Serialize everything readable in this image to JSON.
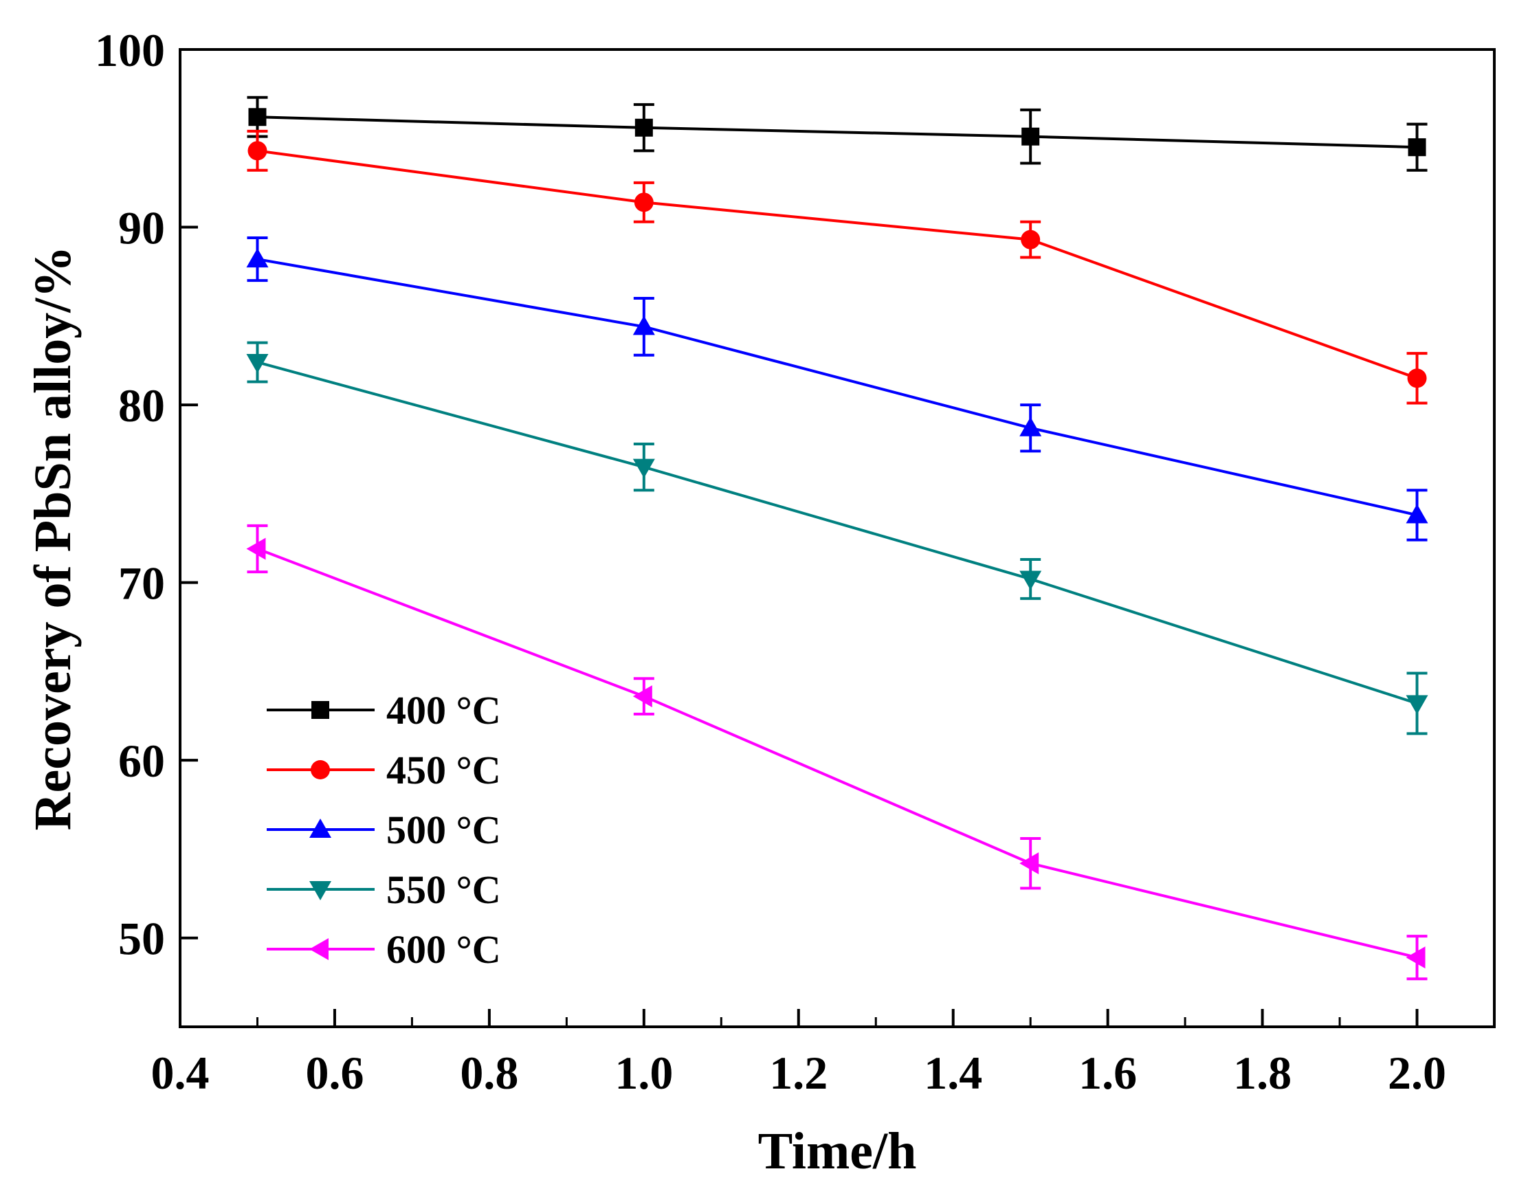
{
  "chart_data": {
    "type": "line",
    "title": "",
    "xlabel": "Time/h",
    "ylabel": "Recovery of PbSn alloy/%",
    "xlim": [
      0.4,
      2.1
    ],
    "ylim": [
      45,
      100
    ],
    "xticks": [
      0.4,
      0.6,
      0.8,
      1.0,
      1.2,
      1.4,
      1.6,
      1.8,
      2.0
    ],
    "xtick_labels": [
      "0.4",
      "0.6",
      "0.8",
      "1.0",
      "1.2",
      "1.4",
      "1.6",
      "1.8",
      "2.0"
    ],
    "yticks": [
      50,
      60,
      70,
      80,
      90,
      100
    ],
    "ytick_labels": [
      "50",
      "60",
      "70",
      "80",
      "90",
      "100"
    ],
    "grid": false,
    "legend_position": "bottom-left",
    "x": [
      0.5,
      1.0,
      1.5,
      2.0
    ],
    "series": [
      {
        "name": "400 °C",
        "color": "#000000",
        "marker": "square",
        "values": [
          96.2,
          95.6,
          95.1,
          94.5
        ],
        "errors": [
          1.1,
          1.3,
          1.5,
          1.3
        ]
      },
      {
        "name": "450 °C",
        "color": "#ff0000",
        "marker": "circle",
        "values": [
          94.3,
          91.4,
          89.3,
          81.5
        ],
        "errors": [
          1.1,
          1.1,
          1.0,
          1.4
        ]
      },
      {
        "name": "500 °C",
        "color": "#0000ff",
        "marker": "triangle-up",
        "values": [
          88.2,
          84.4,
          78.7,
          73.8
        ],
        "errors": [
          1.2,
          1.6,
          1.3,
          1.4
        ]
      },
      {
        "name": "550 °C",
        "color": "#008080",
        "marker": "triangle-down",
        "values": [
          82.4,
          76.5,
          70.2,
          63.2
        ],
        "errors": [
          1.1,
          1.3,
          1.1,
          1.7
        ]
      },
      {
        "name": "600 °C",
        "color": "#ff00ff",
        "marker": "triangle-left",
        "values": [
          71.9,
          63.6,
          54.2,
          48.9
        ],
        "errors": [
          1.3,
          1.0,
          1.4,
          1.2
        ]
      }
    ]
  }
}
